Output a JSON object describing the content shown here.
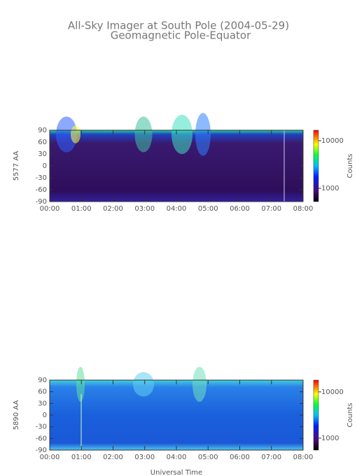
{
  "chart_data": [
    {
      "type": "heatmap",
      "title": "All-Sky Imager at South Pole (2004-05-29)",
      "subtitle": "Geomagnetic Pole-Equator",
      "ylabel": "5577 AA",
      "colorbar_label": "Counts",
      "xlim": [
        0,
        8
      ],
      "xticks": [
        {
          "value": 0,
          "label": "00:00"
        },
        {
          "value": 1,
          "label": "01:00"
        },
        {
          "value": 2,
          "label": "02:00"
        },
        {
          "value": 3,
          "label": "03:00"
        },
        {
          "value": 4,
          "label": "04:00"
        },
        {
          "value": 5,
          "label": "05:00"
        },
        {
          "value": 6,
          "label": "06:00"
        },
        {
          "value": 7,
          "label": "07:00"
        },
        {
          "value": 8,
          "label": "08:00"
        }
      ],
      "ylim": [
        -90,
        90
      ],
      "yticks": [
        -90,
        -60,
        -30,
        0,
        30,
        60,
        90
      ],
      "clim": [
        525,
        16600
      ],
      "clog": true,
      "cticks": [
        1000,
        10000
      ]
    },
    {
      "type": "heatmap",
      "ylabel": "5890 AA",
      "colorbar_label": "Counts",
      "xlabel": "Universal Time",
      "xlim": [
        0,
        8
      ],
      "xticks": [
        {
          "value": 0,
          "label": "00:00"
        },
        {
          "value": 1,
          "label": "01:00"
        },
        {
          "value": 2,
          "label": "02:00"
        },
        {
          "value": 3,
          "label": "03:00"
        },
        {
          "value": 4,
          "label": "04:00"
        },
        {
          "value": 5,
          "label": "05:00"
        },
        {
          "value": 6,
          "label": "06:00"
        },
        {
          "value": 7,
          "label": "07:00"
        },
        {
          "value": 8,
          "label": "08:00"
        }
      ],
      "ylim": [
        -90,
        90
      ],
      "yticks": [
        -90,
        -60,
        -30,
        0,
        30,
        60,
        90
      ],
      "clim": [
        550,
        18000
      ],
      "clog": true,
      "cticks": [
        1000,
        10000
      ]
    }
  ]
}
